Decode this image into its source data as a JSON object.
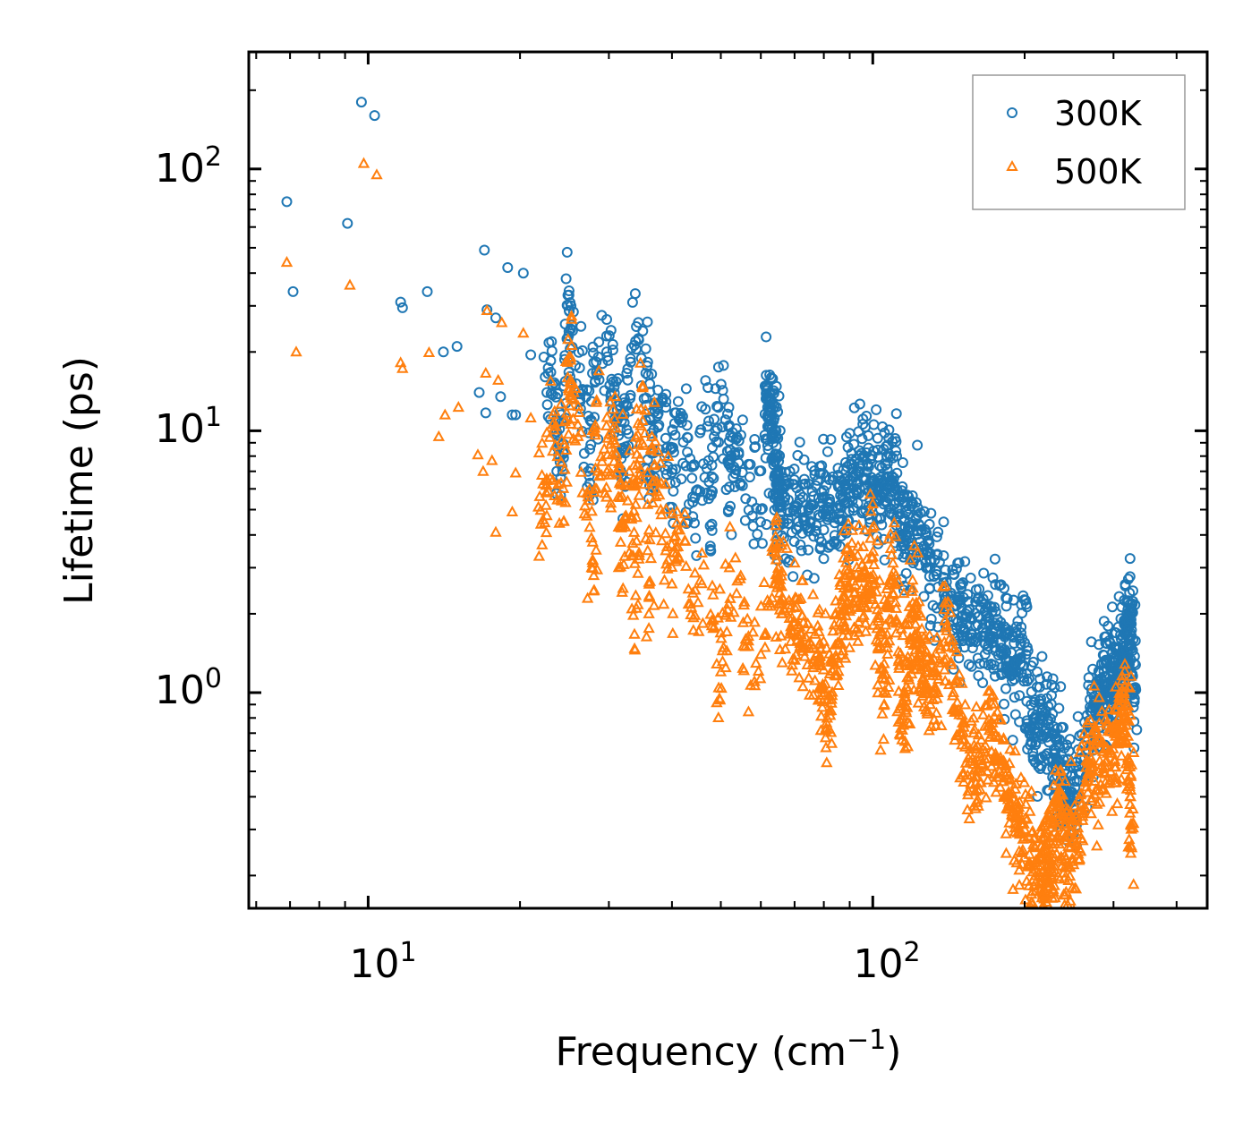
{
  "chart_data": {
    "type": "scatter",
    "xscale": "log",
    "yscale": "log",
    "xlim": [
      5.8,
      460
    ],
    "ylim": [
      0.15,
      280
    ],
    "xlabel": "Frequency (cm",
    "xlabel_sup": "−1",
    "xlabel_end": ")",
    "ylabel": "Lifetime (ps)",
    "x_tick_labels": [
      {
        "value": 10,
        "base": "10",
        "exp": "1"
      },
      {
        "value": 100,
        "base": "10",
        "exp": "2"
      }
    ],
    "y_tick_labels": [
      {
        "value": 1,
        "base": "10",
        "exp": "0"
      },
      {
        "value": 10,
        "base": "10",
        "exp": "1"
      },
      {
        "value": 100,
        "base": "10",
        "exp": "2"
      }
    ],
    "legend_position": "top-right",
    "series": [
      {
        "name": "300K",
        "marker": "circle",
        "color": "#1f77b4",
        "points": [
          [
            6.9,
            75
          ],
          [
            7.1,
            34
          ],
          [
            9.1,
            62
          ],
          [
            9.7,
            180
          ],
          [
            10.3,
            160
          ],
          [
            11.6,
            31
          ],
          [
            11.7,
            29.5
          ],
          [
            13.1,
            34
          ],
          [
            14.1,
            20
          ],
          [
            15.0,
            21
          ],
          [
            16.6,
            14
          ],
          [
            17.1,
            11.7
          ],
          [
            17.2,
            29
          ],
          [
            17.0,
            49
          ],
          [
            17.9,
            27
          ],
          [
            18.3,
            13.5
          ],
          [
            18.9,
            42
          ],
          [
            19.3,
            11.5
          ],
          [
            19.6,
            11.5
          ],
          [
            20.3,
            40
          ],
          [
            21.0,
            19.5
          ],
          [
            22.6,
            14
          ],
          [
            23.2,
            15
          ],
          [
            24.4,
            8.9
          ],
          [
            25.0,
            33
          ],
          [
            25.0,
            24
          ],
          [
            26.6,
            14.4
          ],
          [
            28.0,
            18.2
          ],
          [
            29.7,
            20
          ],
          [
            30.6,
            15.4
          ],
          [
            31.3,
            11.2
          ],
          [
            32.6,
            12.5
          ],
          [
            34.0,
            25
          ],
          [
            35.9,
            16.3
          ],
          [
            36.8,
            10.1
          ],
          [
            38.2,
            12.9
          ],
          [
            40.5,
            11.7
          ],
          [
            43.0,
            9.4
          ],
          [
            46.6,
            12.1
          ],
          [
            48.8,
            10
          ],
          [
            51.8,
            10.4
          ],
          [
            53.6,
            9.3
          ],
          [
            61.9,
            12.3
          ],
          [
            62.9,
            10.6
          ],
          [
            64.8,
            7.9
          ],
          [
            24.0,
            7.6
          ],
          [
            27.5,
            6.3
          ],
          [
            32.0,
            6.8
          ],
          [
            36.0,
            5.5
          ],
          [
            40.0,
            5.1
          ],
          [
            44.0,
            4.7
          ],
          [
            48.0,
            4.4
          ],
          [
            52.0,
            6.1
          ],
          [
            56.0,
            5.5
          ],
          [
            60.0,
            5.0
          ],
          [
            65.0,
            4.6
          ],
          [
            70.0,
            5.1
          ],
          [
            75.0,
            5.1
          ],
          [
            80.0,
            5.0
          ],
          [
            86.0,
            5.2
          ],
          [
            90.0,
            6.5
          ],
          [
            95.0,
            8.2
          ],
          [
            100.0,
            6.0
          ],
          [
            105.0,
            6.4
          ],
          [
            110.0,
            6.3
          ],
          [
            115.0,
            3.9
          ],
          [
            120.0,
            4.4
          ],
          [
            130.0,
            3.0
          ],
          [
            140.0,
            2.5
          ],
          [
            150.0,
            2.1
          ],
          [
            160.0,
            1.8
          ],
          [
            170.0,
            1.8
          ],
          [
            180.0,
            1.7
          ],
          [
            190.0,
            1.2
          ],
          [
            200.0,
            1.55
          ],
          [
            210.0,
            0.7
          ],
          [
            220.0,
            0.85
          ],
          [
            230.0,
            0.6
          ],
          [
            240.0,
            0.45
          ],
          [
            250.0,
            0.4
          ],
          [
            270.0,
            0.85
          ],
          [
            280.0,
            0.9
          ],
          [
            290.0,
            1.05
          ],
          [
            300.0,
            1.2
          ],
          [
            310.0,
            1.4
          ],
          [
            320.0,
            1.8
          ],
          [
            325.0,
            1.9
          ],
          [
            330.0,
            0.95
          ]
        ]
      },
      {
        "name": "500K",
        "marker": "triangle",
        "color": "#ff7f0e",
        "points": [
          [
            6.9,
            44
          ],
          [
            7.2,
            20
          ],
          [
            9.2,
            36
          ],
          [
            9.8,
            105
          ],
          [
            10.4,
            95
          ],
          [
            11.6,
            18.2
          ],
          [
            11.7,
            17.3
          ],
          [
            13.2,
            19.9
          ],
          [
            13.8,
            9.5
          ],
          [
            14.2,
            11.5
          ],
          [
            15.1,
            12.3
          ],
          [
            16.5,
            8.1
          ],
          [
            16.9,
            7.0
          ],
          [
            17.1,
            16.6
          ],
          [
            17.2,
            28.8
          ],
          [
            17.6,
            7.7
          ],
          [
            18.1,
            15.6
          ],
          [
            18.4,
            25.9
          ],
          [
            19.3,
            4.9
          ],
          [
            19.6,
            6.9
          ],
          [
            20.3,
            23.6
          ],
          [
            21.0,
            11.2
          ],
          [
            22.6,
            6.2
          ],
          [
            23.5,
            8.8
          ],
          [
            24.4,
            4.5
          ],
          [
            25.0,
            14.2
          ],
          [
            25.2,
            19.1
          ],
          [
            26.6,
            5.8
          ],
          [
            28.2,
            10.5
          ],
          [
            29.8,
            8.1
          ],
          [
            30.5,
            9.2
          ],
          [
            31.5,
            6.3
          ],
          [
            33.0,
            8.4
          ],
          [
            34.2,
            7.4
          ],
          [
            35.0,
            14.6
          ],
          [
            36.5,
            9.5
          ],
          [
            38.0,
            5.0
          ],
          [
            41.0,
            4.2
          ],
          [
            17.9,
            4.1
          ],
          [
            22.0,
            4.4
          ],
          [
            28.0,
            2.8
          ],
          [
            32.0,
            2.5
          ],
          [
            34.0,
            2.1
          ],
          [
            36.0,
            2.0
          ],
          [
            40.0,
            2.6
          ],
          [
            44.0,
            2.4
          ],
          [
            48.0,
            1.8
          ],
          [
            50.0,
            1.2
          ],
          [
            52.0,
            3.0
          ],
          [
            56.0,
            1.6
          ],
          [
            60.0,
            1.4
          ],
          [
            64.0,
            3.7
          ],
          [
            66.0,
            2.0
          ],
          [
            72.0,
            1.7
          ],
          [
            78.0,
            1.3
          ],
          [
            82.0,
            0.85
          ],
          [
            86.0,
            2.0
          ],
          [
            90.0,
            2.8
          ],
          [
            95.0,
            2.3
          ],
          [
            100.0,
            3.3
          ],
          [
            105.0,
            1.0
          ],
          [
            110.0,
            2.9
          ],
          [
            115.0,
            0.75
          ],
          [
            120.0,
            2.2
          ],
          [
            125.0,
            1.3
          ],
          [
            130.0,
            0.9
          ],
          [
            140.0,
            1.8
          ],
          [
            150.0,
            0.7
          ],
          [
            160.0,
            0.45
          ],
          [
            170.0,
            0.75
          ],
          [
            180.0,
            0.55
          ],
          [
            190.0,
            0.35
          ],
          [
            200.0,
            0.3
          ],
          [
            210.0,
            0.2
          ],
          [
            220.0,
            0.25
          ],
          [
            225.0,
            0.17
          ],
          [
            232.0,
            0.4
          ],
          [
            240.0,
            0.28
          ],
          [
            250.0,
            0.22
          ],
          [
            265.0,
            0.55
          ],
          [
            280.0,
            0.5
          ],
          [
            295.0,
            0.6
          ],
          [
            310.0,
            0.75
          ],
          [
            320.0,
            0.85
          ],
          [
            325.0,
            0.26
          ]
        ],
        "legend_y_order": 1
      }
    ]
  },
  "colors": {
    "series_300K": "#1f77b4",
    "series_500K": "#ff7f0e"
  }
}
